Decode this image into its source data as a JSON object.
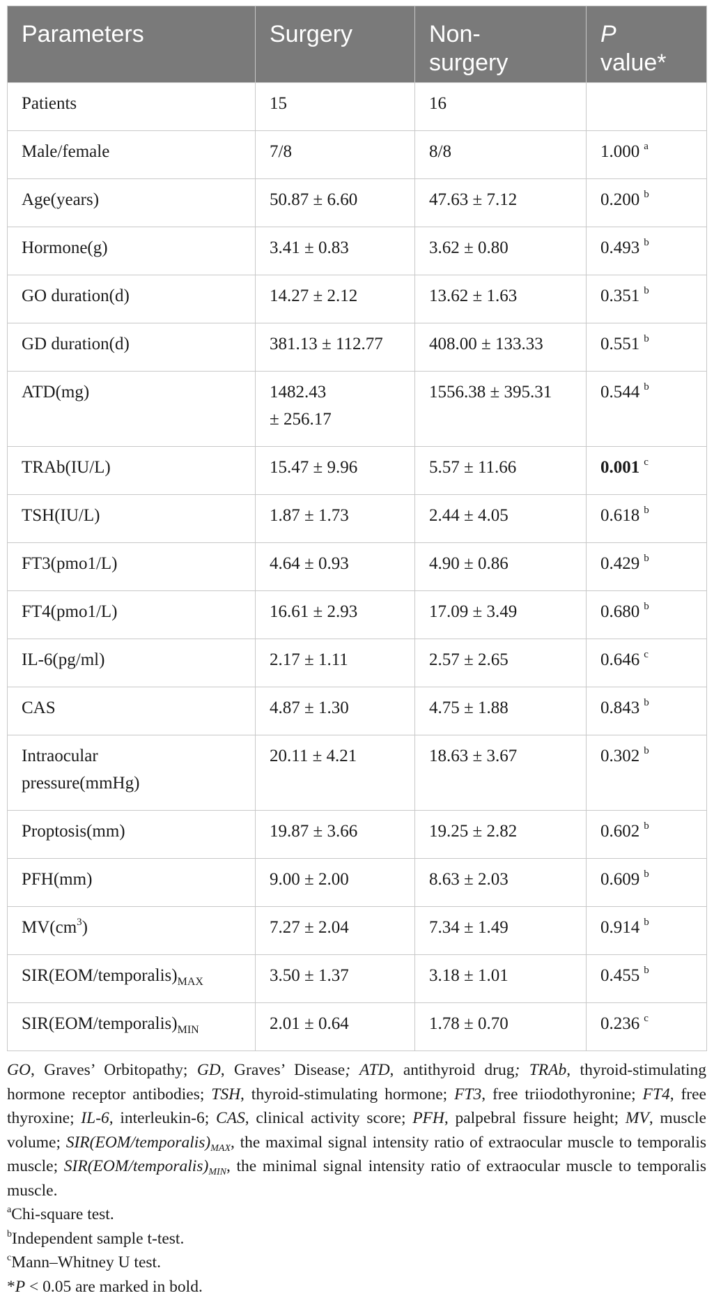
{
  "table": {
    "headers": {
      "parameters": "Parameters",
      "surgery": "Surgery",
      "nonsurgery_1": "Non-",
      "nonsurgery_2": "surgery",
      "p_1": "P",
      "p_2": "value*"
    },
    "rows": [
      {
        "param": "Patients",
        "surgery": "15",
        "non": "16",
        "p": "",
        "sup": ""
      },
      {
        "param": "Male/female",
        "surgery": "7/8",
        "non": "8/8",
        "p": "1.000",
        "sup": "a"
      },
      {
        "param": "Age(years)",
        "surgery": "50.87 ± 6.60",
        "non": "47.63 ± 7.12",
        "p": "0.200",
        "sup": "b"
      },
      {
        "param": "Hormone(g)",
        "surgery": "3.41 ± 0.83",
        "non": "3.62 ± 0.80",
        "p": "0.493",
        "sup": "b"
      },
      {
        "param": "GO duration(d)",
        "surgery": "14.27 ± 2.12",
        "non": "13.62 ± 1.63",
        "p": "0.351",
        "sup": "b"
      },
      {
        "param": "GD duration(d)",
        "surgery": "381.13 ± 112.77",
        "non": "408.00 ± 133.33",
        "p": "0.551",
        "sup": "b"
      },
      {
        "param": "ATD(mg)",
        "surgery_1": "1482.43",
        "surgery_2": "± 256.17",
        "non": "1556.38 ± 395.31",
        "p": "0.544",
        "sup": "b"
      },
      {
        "param": "TRAb(IU/L)",
        "surgery": "15.47 ± 9.96",
        "non": "5.57 ± 11.66",
        "p": "0.001",
        "sup": "c"
      },
      {
        "param": "TSH(IU/L)",
        "surgery": "1.87 ± 1.73",
        "non": "2.44 ± 4.05",
        "p": "0.618",
        "sup": "b"
      },
      {
        "param": "FT3(pmo1/L)",
        "surgery": "4.64 ± 0.93",
        "non": "4.90 ± 0.86",
        "p": "0.429",
        "sup": "b"
      },
      {
        "param": "FT4(pmo1/L)",
        "surgery": "16.61 ± 2.93",
        "non": "17.09 ± 3.49",
        "p": "0.680",
        "sup": "b"
      },
      {
        "param": "IL-6(pg/ml)",
        "surgery": "2.17 ± 1.11",
        "non": "2.57 ± 2.65",
        "p": "0.646",
        "sup": "c"
      },
      {
        "param": "CAS",
        "surgery": "4.87 ± 1.30",
        "non": "4.75 ± 1.88",
        "p": "0.843",
        "sup": "b"
      },
      {
        "param_1": "Intraocular",
        "param_2": "pressure(mmHg)",
        "surgery": "20.11 ± 4.21",
        "non": "18.63 ± 3.67",
        "p": "0.302",
        "sup": "b"
      },
      {
        "param": "Proptosis(mm)",
        "surgery": "19.87 ± 3.66",
        "non": "19.25 ± 2.82",
        "p": "0.602",
        "sup": "b"
      },
      {
        "param": "PFH(mm)",
        "surgery": "9.00 ± 2.00",
        "non": "8.63 ± 2.03",
        "p": "0.609",
        "sup": "b"
      },
      {
        "param": "MV(cm",
        "param_sup": "3",
        "param_end": ")",
        "surgery": "7.27 ± 2.04",
        "non": "7.34 ± 1.49",
        "p": "0.914",
        "sup": "b"
      },
      {
        "param": "SIR(EOM/temporalis)",
        "param_sub": "MAX",
        "surgery": "3.50 ± 1.37",
        "non": "3.18 ± 1.01",
        "p": "0.455",
        "sup": "b"
      },
      {
        "param": "SIR(EOM/temporalis)",
        "param_sub": "MIN",
        "surgery": "2.01 ± 0.64",
        "non": "1.78 ± 0.70",
        "p": "0.236",
        "sup": "c"
      }
    ]
  },
  "footnotes": {
    "abbrev": [
      {
        "term": "GO",
        "def": ", Graves’ Orbitopathy; "
      },
      {
        "term": "GD",
        "def": ", Graves’ Disease"
      },
      {
        "term": "; ATD",
        "def": ", antithyroid drug"
      },
      {
        "term": "; TRAb",
        "def": ", thyroid-stimulating hormone receptor antibodies; "
      },
      {
        "term": "TSH",
        "def": ", thyroid-stimulating hormone; "
      },
      {
        "term": "FT3",
        "def": ", free triiodothyronine; "
      },
      {
        "term": "FT4",
        "def": ", free thyroxine; "
      },
      {
        "term": "IL-6",
        "def": ", interleukin-6; "
      },
      {
        "term": "CAS",
        "def": ", clinical activity score; "
      },
      {
        "term": "PFH",
        "def": ", palpebral fissure height; "
      },
      {
        "term": "MV",
        "def": ", muscle volume; "
      },
      {
        "term": "SIR(EOM/temporalis)",
        "term_sub": "MAX",
        "def": ", the maximal signal intensity ratio of extraocular muscle to temporalis muscle; "
      },
      {
        "term": "SIR(EOM/temporalis)",
        "term_sub": "MIN",
        "def": ", the minimal signal intensity ratio of extraocular muscle to temporalis muscle."
      }
    ],
    "notes": [
      {
        "mark": "a",
        "text": "Chi-square test."
      },
      {
        "mark": "b",
        "text": "Independent sample t-test."
      },
      {
        "mark": "c",
        "text": "Mann–Whitney U test."
      }
    ],
    "sig_mark": "*",
    "sig_p": "P",
    "sig_text": " < 0.05 are marked in bold."
  }
}
